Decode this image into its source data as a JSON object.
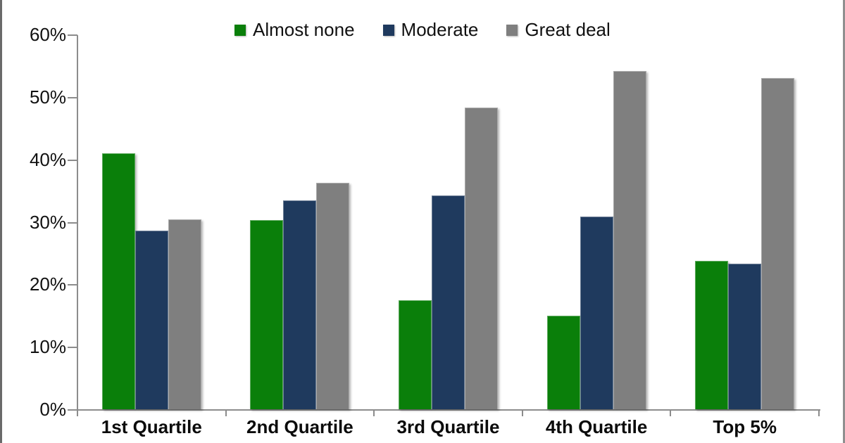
{
  "frame": {
    "background": "#ffffff",
    "left_border_color": "#6a6a6a",
    "right_border_color": "#8f8f8f",
    "axis_color": "#8c8c8c",
    "text_color": "#111111"
  },
  "chart_data": {
    "type": "bar",
    "title": "",
    "xlabel": "",
    "ylabel": "",
    "categories": [
      "1st Quartile",
      "2nd Quartile",
      "3rd Quartile",
      "4th Quartile",
      "Top 5%"
    ],
    "series": [
      {
        "name": "Almost none",
        "color": "#0a7f0a",
        "values": [
          41.0,
          30.3,
          17.5,
          15.0,
          23.7
        ]
      },
      {
        "name": "Moderate",
        "color": "#1f3a5e",
        "values": [
          28.6,
          33.4,
          34.2,
          30.9,
          23.3
        ]
      },
      {
        "name": "Great deal",
        "color": "#7f7f7f",
        "values": [
          30.4,
          36.3,
          48.3,
          54.1,
          53.0
        ]
      }
    ],
    "y_ticks": [
      "0%",
      "10%",
      "20%",
      "30%",
      "40%",
      "50%",
      "60%"
    ],
    "ylim": [
      0,
      60
    ],
    "grid": false,
    "legend_position": "top-center",
    "legend_swatch_shape": "square"
  }
}
